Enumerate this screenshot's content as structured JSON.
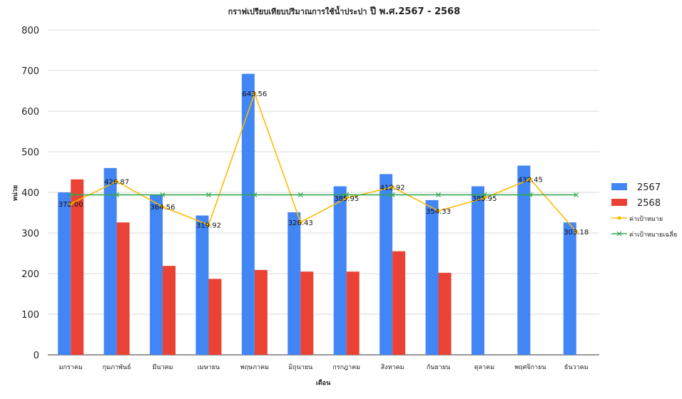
{
  "chart_data": {
    "type": "bar",
    "title": "กราฟเปรียบเทียบปริมาณการใช้น้ำประปา",
    "title_year": "ปี พ.ศ.2567 - 2568",
    "xlabel": "เดือน",
    "ylabel": "หน่วย",
    "ylim": [
      0,
      800
    ],
    "yticks": [
      0,
      100,
      200,
      300,
      400,
      500,
      600,
      700,
      800
    ],
    "grid": true,
    "legend_position": "right",
    "categories": [
      "มกราคม",
      "กุมภาพันธ์",
      "มีนาคม",
      "เมษายน",
      "พฤษภาคม",
      "มิถุนายน",
      "กรกฎาคม",
      "สิงหาคม",
      "กันยายน",
      "ตุลาคม",
      "พฤศจิกายน",
      "ธันวาคม"
    ],
    "series": [
      {
        "name": "2567",
        "kind": "bar",
        "color": "#4285f4",
        "values": [
          400,
          460,
          395,
          343,
          692,
          351,
          415,
          445,
          381,
          415,
          466,
          326
        ]
      },
      {
        "name": "2568",
        "kind": "bar",
        "color": "#ea4335",
        "values": [
          432,
          326,
          219,
          187,
          209,
          205,
          205,
          255,
          202,
          null,
          null,
          null
        ]
      },
      {
        "name": "ค่าเป้าหมาย",
        "kind": "line",
        "color": "#fbbc04",
        "values": [
          372.0,
          426.87,
          364.56,
          319.92,
          643.56,
          326.43,
          385.95,
          412.92,
          354.33,
          385.95,
          432.45,
          303.18
        ],
        "labels": [
          "372.00",
          "426.87",
          "364.56",
          "319.92",
          "643.56",
          "326.43",
          "385.95",
          "412.92",
          "354.33",
          "385.95",
          "432.45",
          "303.18"
        ]
      },
      {
        "name": "ค่าเป้าหมายเฉลี่ย",
        "kind": "line",
        "color": "#34a853",
        "values": [
          394,
          394,
          394,
          394,
          394,
          394,
          394,
          394,
          394,
          394,
          394,
          394
        ]
      }
    ]
  }
}
